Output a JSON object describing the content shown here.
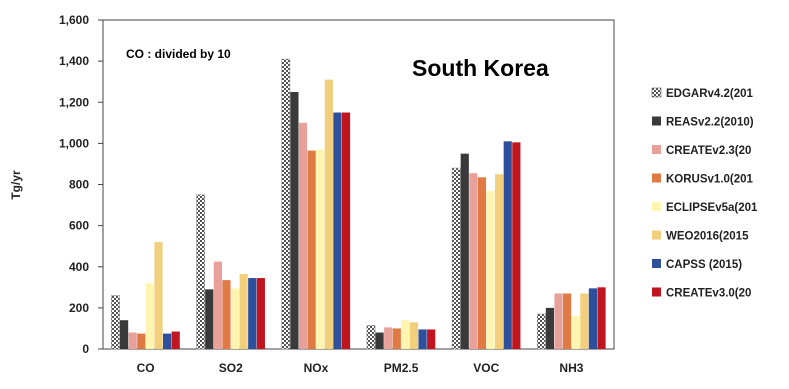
{
  "chart_data": {
    "type": "bar",
    "title": "South Korea",
    "annotation": "CO : divided by 10",
    "ylabel": "Tg/yr",
    "xlabel": "",
    "ylim": [
      0,
      1600
    ],
    "yticks": [
      0,
      200,
      400,
      600,
      800,
      1000,
      1200,
      1400,
      1600
    ],
    "ytick_labels": [
      "0",
      "200",
      "400",
      "600",
      "800",
      "1,000",
      "1,200",
      "1,400",
      "1,600"
    ],
    "grid": false,
    "legend_position": "right",
    "categories": [
      "CO",
      "SO2",
      "NOx",
      "PM2.5",
      "VOC",
      "NH3"
    ],
    "series": [
      {
        "name": "EDGARv4.2(201",
        "color": "#d9d9d9",
        "pattern": "checker",
        "values": [
          260,
          750,
          1410,
          115,
          880,
          170
        ]
      },
      {
        "name": "REASv2.2(2010)",
        "color": "#3a3a3a",
        "pattern": "solid",
        "values": [
          140,
          290,
          1250,
          80,
          950,
          200
        ]
      },
      {
        "name": "CREATEv2.3(20",
        "color": "#e8a09a",
        "pattern": "solid",
        "values": [
          80,
          425,
          1100,
          105,
          855,
          270
        ]
      },
      {
        "name": "KORUSv1.0(201",
        "color": "#e07a45",
        "pattern": "solid",
        "values": [
          75,
          335,
          965,
          100,
          835,
          270
        ]
      },
      {
        "name": "ECLIPSEv5a(201",
        "color": "#fff4b0",
        "pattern": "solid",
        "values": [
          320,
          295,
          970,
          140,
          770,
          160
        ]
      },
      {
        "name": "WEO2016(2015",
        "color": "#f2cf7c",
        "pattern": "solid",
        "values": [
          520,
          365,
          1310,
          130,
          850,
          270
        ]
      },
      {
        "name": "CAPSS (2015)",
        "color": "#2e4f9c",
        "pattern": "solid",
        "values": [
          75,
          345,
          1150,
          95,
          1010,
          295
        ]
      },
      {
        "name": "CREATEv3.0(20",
        "color": "#c0141e",
        "pattern": "solid",
        "values": [
          85,
          345,
          1150,
          95,
          1005,
          300
        ]
      }
    ]
  }
}
